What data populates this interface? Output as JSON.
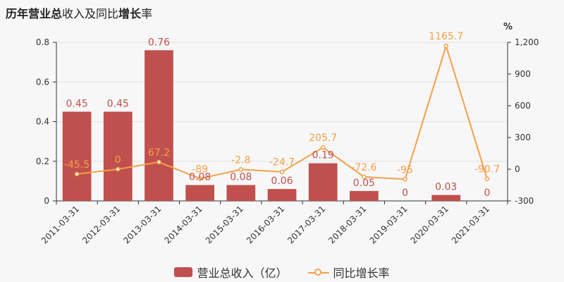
{
  "title": {
    "part1": "历年",
    "part2": "营业总",
    "part3": "收入及同比",
    "part4": "增长",
    "part5": "率"
  },
  "legend": {
    "bar_label": "营业总收入（亿）",
    "line_label": "同比增长率"
  },
  "chart_data": {
    "type": "bar",
    "categories": [
      "2011-03-31",
      "2012-03-31",
      "2013-03-31",
      "2014-03-31",
      "2015-03-31",
      "2016-03-31",
      "2017-03-31",
      "2018-03-31",
      "2019-03-31",
      "2020-03-31",
      "2021-03-31"
    ],
    "series": [
      {
        "name": "营业总收入（亿）",
        "type": "bar",
        "axis": "left",
        "color": "#c0504d",
        "values": [
          0.45,
          0.45,
          0.76,
          0.08,
          0.08,
          0.06,
          0.19,
          0.05,
          0,
          0.03,
          0
        ],
        "labels": [
          "0.45",
          "0.45",
          "0.76",
          "0.08",
          "0.08",
          "0.06",
          "0.19",
          "0.05",
          "0",
          "0.03",
          "0"
        ]
      },
      {
        "name": "同比增长率",
        "type": "line",
        "axis": "right",
        "color": "#f4a04a",
        "values": [
          -45.5,
          0,
          67.2,
          -89,
          -2.8,
          -24.7,
          205.7,
          -72.6,
          -95,
          1165.7,
          -90.7
        ],
        "labels": [
          "-45.5",
          "0",
          "67.2",
          "-89",
          "-2.8",
          "-24.7",
          "205.7",
          "-72.6",
          "-95",
          "1165.7",
          "-90.7"
        ]
      }
    ],
    "ylim_left": [
      0,
      0.8
    ],
    "yticks_left": [
      "0",
      "0.2",
      "0.4",
      "0.6",
      "0.8"
    ],
    "ylim_right": [
      -300,
      1200
    ],
    "yticks_right": [
      "-300",
      "0",
      "300",
      "600",
      "900",
      "1,200"
    ],
    "ylabel_right": "%",
    "grid": true,
    "legend_position": "bottom"
  }
}
